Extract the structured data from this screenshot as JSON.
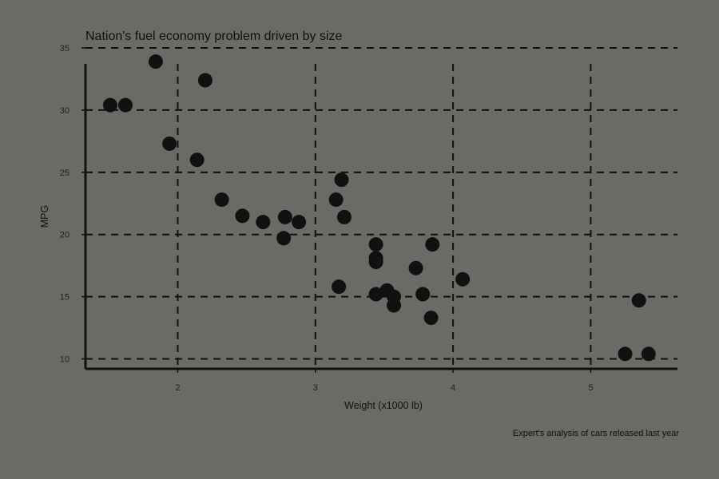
{
  "chart_data": {
    "type": "scatter",
    "title": "Nation's fuel economy problem driven by size",
    "xlabel": "Weight (x1000 lb)",
    "ylabel": "MPG",
    "caption": "Expert's analysis of cars released last year",
    "xlim": [
      1.33,
      5.63
    ],
    "ylim": [
      9.2,
      35
    ],
    "xticks": [
      2,
      3,
      4,
      5
    ],
    "yticks": [
      10,
      15,
      20,
      25,
      30,
      35
    ],
    "grid": true,
    "grid_style": "dashed",
    "point_color": "#111111",
    "series": [
      {
        "points": [
          {
            "x": 1.51,
            "y": 30.4
          },
          {
            "x": 1.62,
            "y": 30.4
          },
          {
            "x": 1.84,
            "y": 33.9
          },
          {
            "x": 1.94,
            "y": 27.3
          },
          {
            "x": 2.14,
            "y": 26.0
          },
          {
            "x": 2.2,
            "y": 32.4
          },
          {
            "x": 2.32,
            "y": 22.8
          },
          {
            "x": 2.47,
            "y": 21.5
          },
          {
            "x": 2.62,
            "y": 21.0
          },
          {
            "x": 2.77,
            "y": 19.7
          },
          {
            "x": 2.78,
            "y": 21.4
          },
          {
            "x": 2.88,
            "y": 21.0
          },
          {
            "x": 3.15,
            "y": 22.8
          },
          {
            "x": 3.17,
            "y": 15.8
          },
          {
            "x": 3.19,
            "y": 24.4
          },
          {
            "x": 3.21,
            "y": 21.4
          },
          {
            "x": 3.44,
            "y": 19.2
          },
          {
            "x": 3.44,
            "y": 18.1
          },
          {
            "x": 3.44,
            "y": 17.8
          },
          {
            "x": 3.44,
            "y": 15.2
          },
          {
            "x": 3.52,
            "y": 15.5
          },
          {
            "x": 3.57,
            "y": 15.0
          },
          {
            "x": 3.57,
            "y": 14.3
          },
          {
            "x": 3.73,
            "y": 17.3
          },
          {
            "x": 3.78,
            "y": 15.2
          },
          {
            "x": 3.84,
            "y": 13.3
          },
          {
            "x": 3.85,
            "y": 19.2
          },
          {
            "x": 4.07,
            "y": 16.4
          },
          {
            "x": 5.25,
            "y": 10.4
          },
          {
            "x": 5.35,
            "y": 14.7
          },
          {
            "x": 5.42,
            "y": 10.4
          }
        ]
      }
    ]
  }
}
